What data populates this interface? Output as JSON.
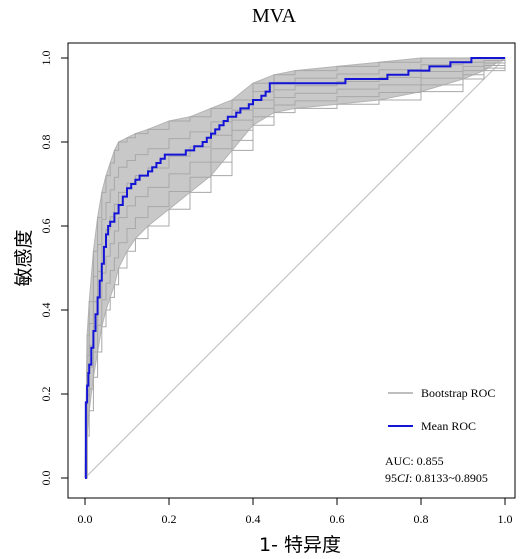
{
  "chart_data": {
    "type": "line",
    "title": "MVA",
    "xlabel": "1- 特异度",
    "ylabel": "敏感度",
    "xlim": [
      0,
      1
    ],
    "ylim": [
      0,
      1
    ],
    "xticks": [
      "0.0",
      "0.2",
      "0.4",
      "0.6",
      "0.8",
      "1.0"
    ],
    "yticks": [
      "0.0",
      "0.2",
      "0.4",
      "0.6",
      "0.8",
      "1.0"
    ],
    "grid": false,
    "legend_position": "bottom-right",
    "colors": {
      "bootstrap": "#bebebe",
      "mean": "#1414d6",
      "diagonal": "#bebebe",
      "axis": "#000000"
    },
    "series": [
      {
        "name": "Mean ROC",
        "x": [
          0.0,
          0.002,
          0.005,
          0.008,
          0.01,
          0.015,
          0.02,
          0.025,
          0.03,
          0.035,
          0.04,
          0.045,
          0.05,
          0.055,
          0.06,
          0.07,
          0.08,
          0.09,
          0.1,
          0.11,
          0.12,
          0.13,
          0.14,
          0.15,
          0.16,
          0.17,
          0.18,
          0.19,
          0.2,
          0.21,
          0.22,
          0.23,
          0.24,
          0.25,
          0.26,
          0.27,
          0.28,
          0.29,
          0.3,
          0.31,
          0.32,
          0.33,
          0.34,
          0.35,
          0.36,
          0.37,
          0.38,
          0.39,
          0.4,
          0.41,
          0.42,
          0.43,
          0.44,
          0.45,
          0.5,
          0.6,
          0.62,
          0.7,
          0.72,
          0.75,
          0.77,
          0.8,
          0.82,
          0.85,
          0.87,
          0.9,
          0.92,
          0.95,
          1.0
        ],
        "y": [
          0.0,
          0.18,
          0.22,
          0.25,
          0.27,
          0.31,
          0.35,
          0.39,
          0.43,
          0.47,
          0.51,
          0.55,
          0.58,
          0.6,
          0.61,
          0.63,
          0.65,
          0.67,
          0.69,
          0.7,
          0.71,
          0.72,
          0.72,
          0.73,
          0.74,
          0.75,
          0.76,
          0.77,
          0.77,
          0.77,
          0.77,
          0.77,
          0.78,
          0.78,
          0.79,
          0.79,
          0.8,
          0.81,
          0.82,
          0.83,
          0.84,
          0.85,
          0.86,
          0.86,
          0.87,
          0.88,
          0.88,
          0.89,
          0.9,
          0.9,
          0.91,
          0.92,
          0.94,
          0.94,
          0.94,
          0.94,
          0.95,
          0.95,
          0.96,
          0.96,
          0.97,
          0.97,
          0.98,
          0.98,
          0.99,
          0.99,
          1.0,
          1.0,
          1.0
        ]
      }
    ],
    "bootstrap_band": {
      "name": "Bootstrap ROC",
      "x": [
        0.0,
        0.005,
        0.01,
        0.02,
        0.03,
        0.04,
        0.05,
        0.06,
        0.07,
        0.08,
        0.1,
        0.12,
        0.15,
        0.2,
        0.25,
        0.3,
        0.35,
        0.4,
        0.45,
        0.5,
        0.6,
        0.7,
        0.8,
        0.9,
        0.95,
        1.0
      ],
      "lower": [
        0.0,
        0.1,
        0.16,
        0.24,
        0.3,
        0.36,
        0.4,
        0.43,
        0.46,
        0.5,
        0.54,
        0.57,
        0.6,
        0.64,
        0.68,
        0.72,
        0.78,
        0.84,
        0.87,
        0.88,
        0.89,
        0.9,
        0.92,
        0.95,
        0.97,
        1.0
      ],
      "upper": [
        0.0,
        0.34,
        0.42,
        0.54,
        0.62,
        0.68,
        0.72,
        0.75,
        0.78,
        0.8,
        0.81,
        0.82,
        0.83,
        0.85,
        0.86,
        0.88,
        0.9,
        0.94,
        0.96,
        0.97,
        0.98,
        0.99,
        1.0,
        1.0,
        1.0,
        1.0
      ]
    },
    "legend": [
      {
        "label": "Bootstrap ROC",
        "series": "bootstrap"
      },
      {
        "label": "Mean ROC",
        "series": "mean"
      }
    ],
    "annotations": {
      "auc": "AUC: 0.855",
      "ci_prefix": "95",
      "ci_italic": "CI",
      "ci_value": ": 0.8133~0.8905"
    }
  }
}
